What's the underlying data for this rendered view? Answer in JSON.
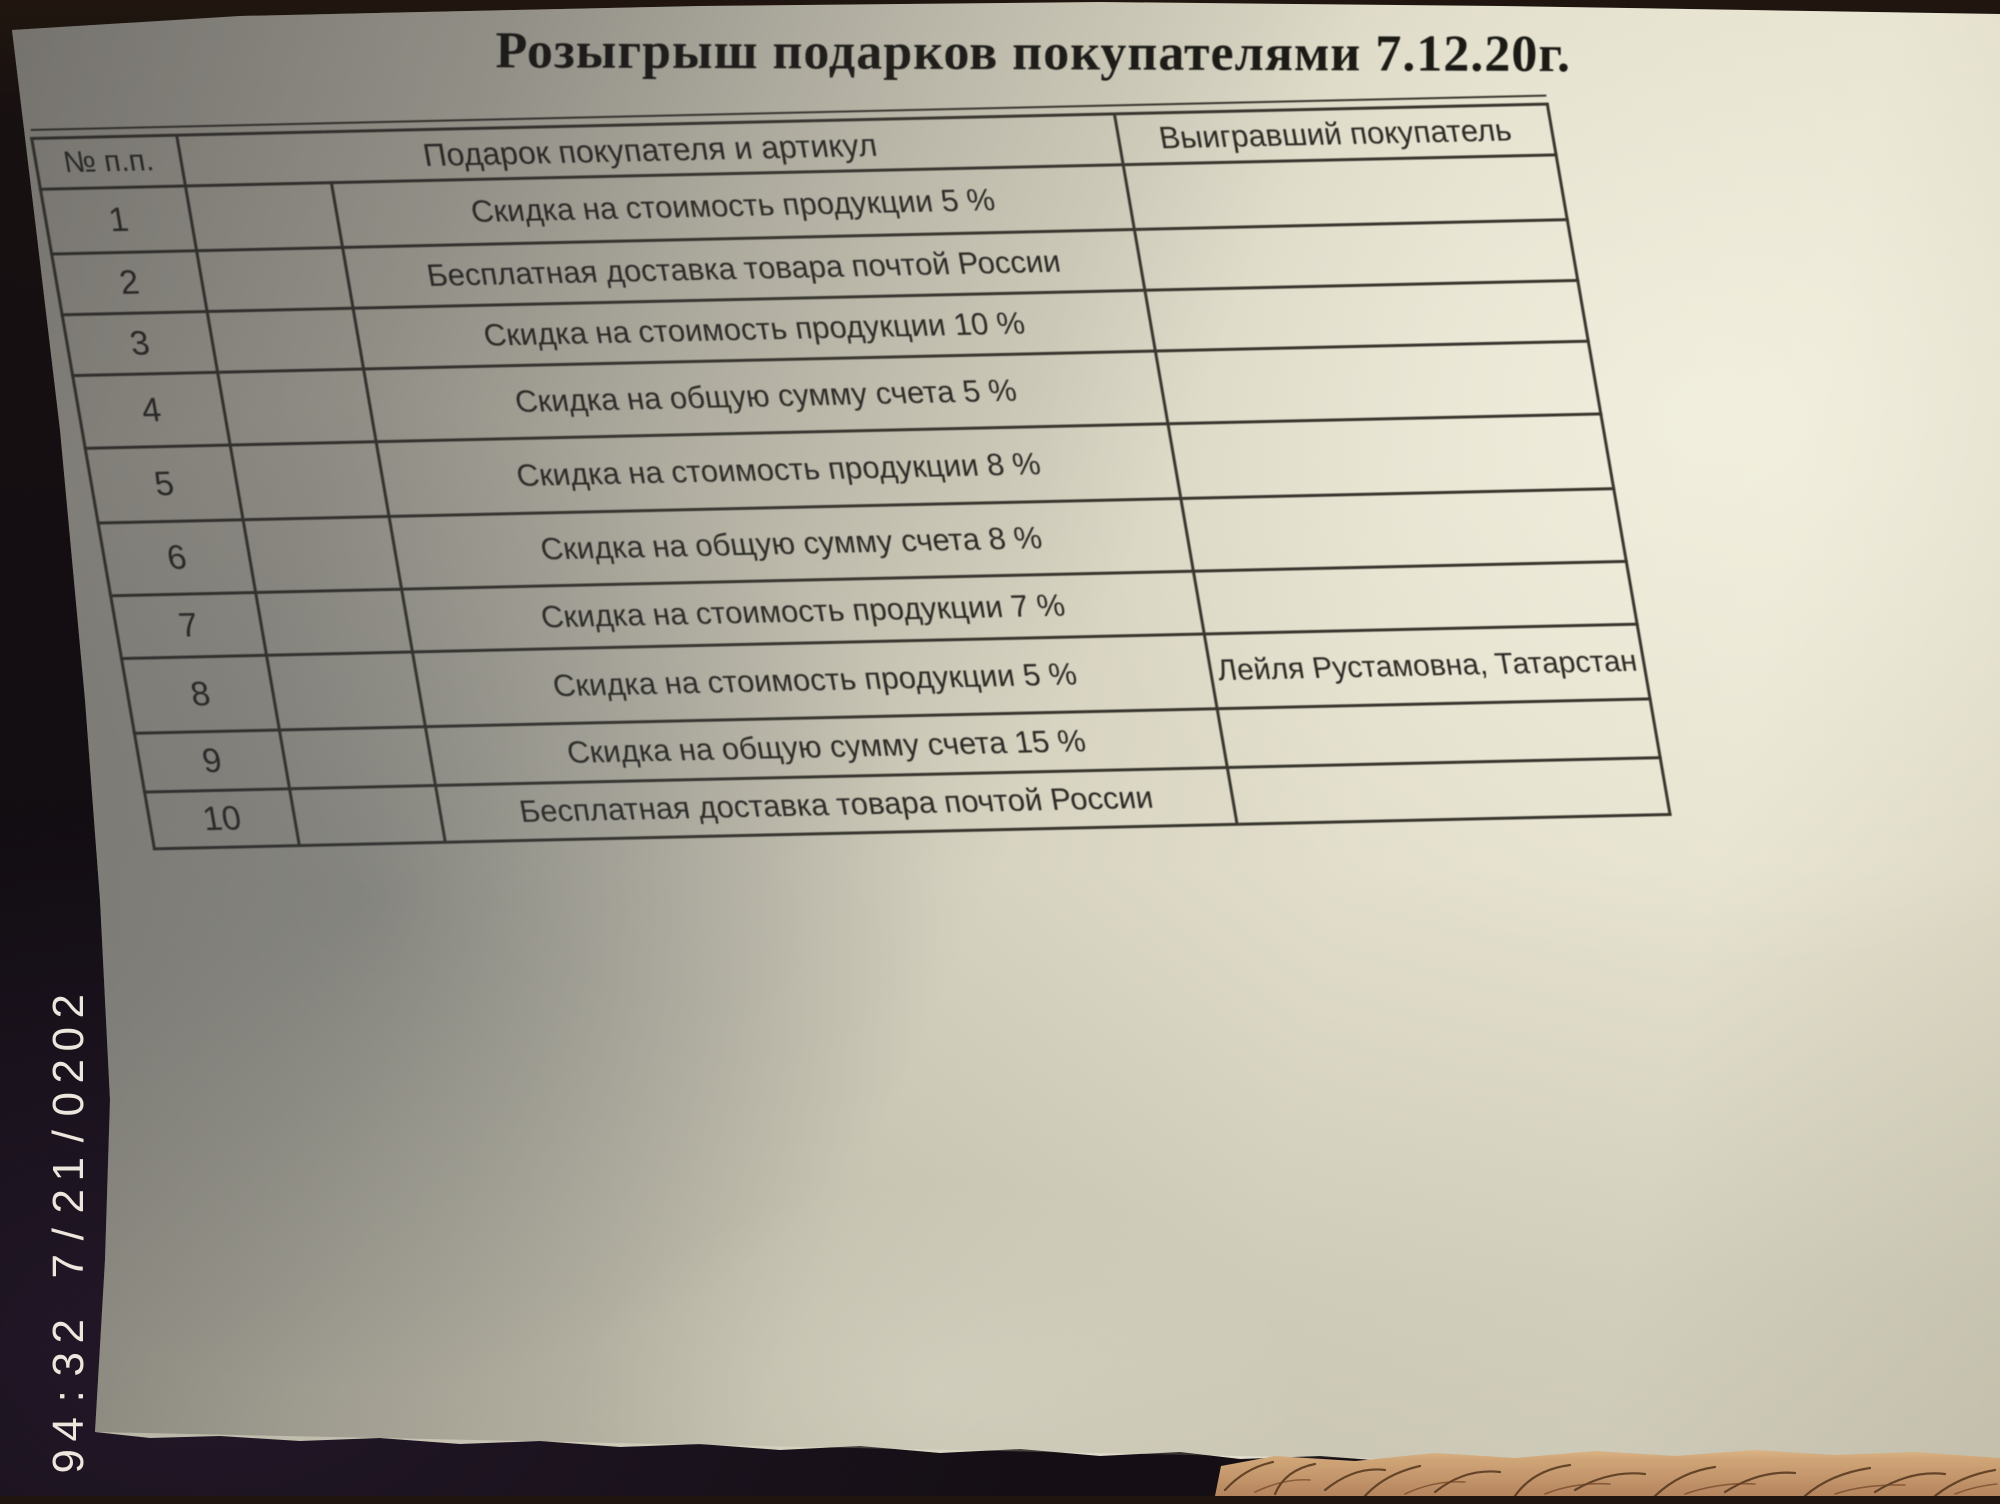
{
  "photo": {
    "camera_timestamp": "2020/12/7 23:49",
    "colors": {
      "desk_background": "#150f14",
      "paper": "#d9d5c2",
      "table_lines": "#38362d",
      "ink": "#2d2b25",
      "timestamp_text": "#f3ede3",
      "skin": "#c79a6e"
    }
  },
  "document": {
    "title": "Розыгрыш подарков покупателями 7.12.20г.",
    "table": {
      "headers": {
        "num": "№ п.п.",
        "gift": "Подарок покупателя и артикул",
        "winner": "Выигравший покупатель"
      },
      "rows": [
        {
          "num": "1",
          "gift": "Скидка на стоимость продукции 5 %",
          "winner": ""
        },
        {
          "num": "2",
          "gift": "Бесплатная доставка товара почтой России",
          "winner": ""
        },
        {
          "num": "3",
          "gift": "Скидка на стоимость продукции 10 %",
          "winner": ""
        },
        {
          "num": "4",
          "gift": "Скидка на общую сумму счета 5 %",
          "winner": ""
        },
        {
          "num": "5",
          "gift": "Скидка на стоимость продукции 8 %",
          "winner": ""
        },
        {
          "num": "6",
          "gift": "Скидка на общую сумму счета 8 %",
          "winner": ""
        },
        {
          "num": "7",
          "gift": "Скидка на стоимость продукции 7 %",
          "winner": ""
        },
        {
          "num": "8",
          "gift": "Скидка на стоимость продукции 5 %",
          "winner": "Лейля Рустамовна, Татарстан"
        },
        {
          "num": "9",
          "gift": "Скидка на общую сумму счета 15 %",
          "winner": ""
        },
        {
          "num": "10",
          "gift": "Бесплатная доставка товара почтой России",
          "winner": ""
        }
      ]
    }
  }
}
